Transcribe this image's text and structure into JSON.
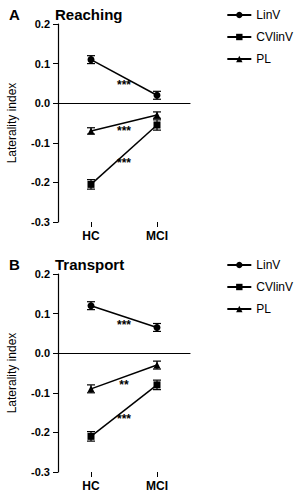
{
  "chart_data": [
    {
      "type": "line",
      "panel": "A",
      "title": "Reaching",
      "y_label": "Laterality index",
      "categories": [
        "HC",
        "MCI"
      ],
      "series": [
        {
          "name": "LinV",
          "color": "#000000",
          "marker": "circle",
          "values": [
            0.11,
            0.02
          ],
          "errors": [
            0.01,
            0.01
          ]
        },
        {
          "name": "CVlinV",
          "color": "#000000",
          "marker": "square",
          "values": [
            -0.205,
            -0.055
          ],
          "errors": [
            0.012,
            0.013
          ]
        },
        {
          "name": "PL",
          "color": "#000000",
          "marker": "triangle",
          "values": [
            -0.07,
            -0.03
          ],
          "errors": [
            0.008,
            0.008
          ]
        }
      ],
      "annotations": [
        {
          "text": "***",
          "series": "LinV"
        },
        {
          "text": "***",
          "series": "PL"
        },
        {
          "text": "***",
          "series": "CVlinV"
        }
      ],
      "ylim": [
        -0.3,
        0.2
      ],
      "yticks": [
        -0.3,
        -0.2,
        -0.1,
        {
          "value": 0,
          "label": "0.0"
        },
        0.1,
        0.2
      ],
      "grid": false,
      "legend": "upper right"
    },
    {
      "type": "line",
      "panel": "B",
      "title": "Transport",
      "y_label": "Laterality index",
      "categories": [
        "HC",
        "MCI"
      ],
      "series": [
        {
          "name": "LinV",
          "color": "#000000",
          "marker": "circle",
          "values": [
            0.12,
            0.065
          ],
          "errors": [
            0.01,
            0.01
          ]
        },
        {
          "name": "CVlinV",
          "color": "#000000",
          "marker": "square",
          "values": [
            -0.21,
            -0.08
          ],
          "errors": [
            0.012,
            0.012
          ]
        },
        {
          "name": "PL",
          "color": "#000000",
          "marker": "triangle",
          "values": [
            -0.09,
            -0.03
          ],
          "errors": [
            0.01,
            0.01
          ]
        }
      ],
      "annotations": [
        {
          "text": "***",
          "series": "LinV"
        },
        {
          "text": "**",
          "series": "PL"
        },
        {
          "text": "***",
          "series": "CVlinV"
        }
      ],
      "ylim": [
        -0.3,
        0.2
      ],
      "yticks": [
        -0.3,
        -0.2,
        -0.1,
        {
          "value": 0,
          "label": "0.0"
        },
        0.1,
        0.2
      ],
      "grid": false,
      "legend": "upper right"
    }
  ]
}
